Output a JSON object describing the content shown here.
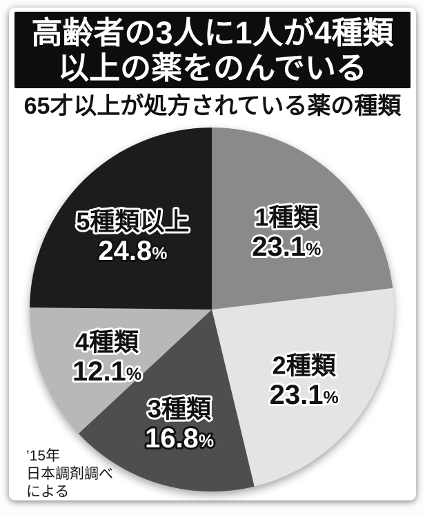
{
  "header": {
    "title_lines": [
      "高齢者の3人に1人が4種類",
      "以上の薬をのんでいる"
    ],
    "bg_color": "#0d0d0d",
    "text_color": "#ffffff"
  },
  "chart_data": {
    "type": "pie",
    "title": "65才以上が処方されている薬の種類",
    "direction": "clockwise",
    "start_angle_deg": 0,
    "legend_position": "none",
    "labels_on_slices": true,
    "percent_symbol": "%",
    "slices": [
      {
        "label": "1種類",
        "value": 23.1,
        "display": "23.1",
        "color": "#8a8a8a",
        "value_text": "#111111",
        "value_outline": "#ffffff"
      },
      {
        "label": "2種類",
        "value": 23.1,
        "display": "23.1",
        "color": "#e4e4e4",
        "value_text": "#111111",
        "value_outline": "#ffffff"
      },
      {
        "label": "3種類",
        "value": 16.8,
        "display": "16.8",
        "color": "#4e4e4e",
        "value_text": "#ffffff",
        "value_outline": "#111111"
      },
      {
        "label": "4種類",
        "value": 12.1,
        "display": "12.1",
        "color": "#b8b8b8",
        "value_text": "#111111",
        "value_outline": "#ffffff"
      },
      {
        "label": "5種類以上",
        "value": 24.8,
        "display": "24.8",
        "color": "#1c1c1c",
        "value_text": "#ffffff",
        "value_outline": "#111111"
      }
    ],
    "label_text_color": "#111111",
    "label_outline_color": "#ffffff"
  },
  "source": {
    "lines": [
      "’15年",
      "日本調剤調べ",
      "による"
    ]
  }
}
